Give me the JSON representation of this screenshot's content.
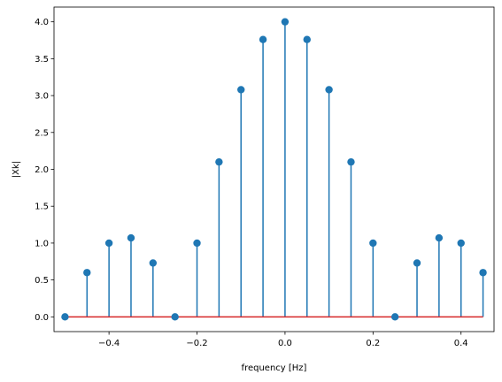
{
  "chart_data": {
    "type": "stem",
    "title": "",
    "xlabel": "frequency [Hz]",
    "ylabel": "|Xk|",
    "xlim": [
      -0.525,
      0.475
    ],
    "ylim": [
      -0.2,
      4.2
    ],
    "xticks": [
      -0.4,
      -0.2,
      0.0,
      0.2,
      0.4
    ],
    "xtick_labels": [
      "−0.4",
      "−0.2",
      "0.0",
      "0.2",
      "0.4"
    ],
    "yticks": [
      0.0,
      0.5,
      1.0,
      1.5,
      2.0,
      2.5,
      3.0,
      3.5,
      4.0
    ],
    "ytick_labels": [
      "0.0",
      "0.5",
      "1.0",
      "1.5",
      "2.0",
      "2.5",
      "3.0",
      "3.5",
      "4.0"
    ],
    "grid": false,
    "colors": {
      "stem": "#1f77b4",
      "baseline": "#d62728",
      "axes": "#000000"
    },
    "series": [
      {
        "x": [
          -0.5,
          -0.45,
          -0.4,
          -0.35,
          -0.3,
          -0.25,
          -0.2,
          -0.15,
          -0.1,
          -0.05,
          0.0,
          0.05,
          0.1,
          0.15,
          0.2,
          0.25,
          0.3,
          0.35,
          0.4,
          0.45
        ],
        "y": [
          0.0,
          0.6,
          1.0,
          1.07,
          0.73,
          0.0,
          1.0,
          2.1,
          3.08,
          3.76,
          4.0,
          3.76,
          3.08,
          2.1,
          1.0,
          0.0,
          0.73,
          1.07,
          1.0,
          0.6
        ]
      }
    ]
  }
}
